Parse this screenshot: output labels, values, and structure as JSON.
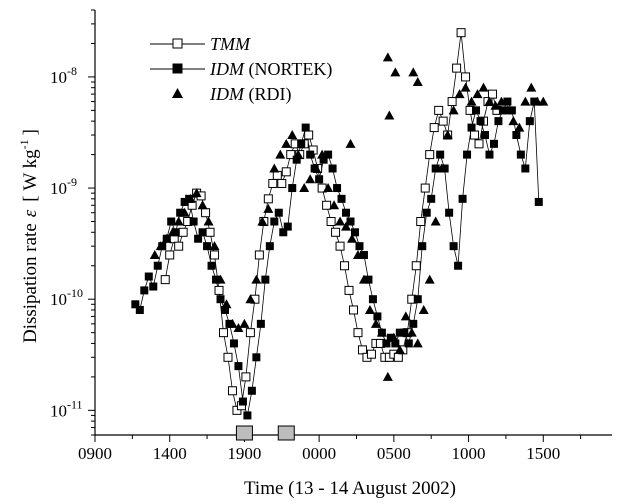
{
  "chart_data": {
    "type": "scatter",
    "title": "",
    "xlabel": "Time (13 - 14 August 2002)",
    "ylabel": "Dissipation rate",
    "ylabel_symbol": "ε",
    "ylabel_units_left": "[ W kg",
    "ylabel_units_exp": "-1",
    "ylabel_units_right": "]",
    "x_axis": {
      "unit": "hours since 0900 on 13 August 2002",
      "range": [
        0,
        34.6
      ],
      "tick_labels": [
        "0900",
        "1400",
        "1900",
        "0000",
        "0500",
        "1000",
        "1500"
      ],
      "tick_values": [
        0,
        5,
        10,
        15,
        20,
        25,
        30
      ]
    },
    "y_axis": {
      "scale": "log",
      "range": [
        6e-12,
        4e-08
      ],
      "ticks": [
        {
          "value": 1e-11,
          "base": "10",
          "exp": "-11"
        },
        {
          "value": 1e-10,
          "base": "10",
          "exp": "-10"
        },
        {
          "value": 1e-09,
          "base": "10",
          "exp": "-9"
        },
        {
          "value": 1e-08,
          "base": "10",
          "exp": "-8"
        }
      ]
    },
    "legend": {
      "position": "top-left",
      "entries": [
        {
          "base": "TMM",
          "paren": ""
        },
        {
          "base": "IDM ",
          "paren": "(NORTEK)"
        },
        {
          "base": "IDM ",
          "paren": "(RDI)"
        }
      ]
    },
    "markers_on_axis": [
      10.0,
      12.8
    ],
    "series": [
      {
        "name": "TMM",
        "marker": "open-square",
        "x": [
          4.7,
          5.0,
          5.3,
          5.6,
          5.9,
          6.2,
          6.5,
          6.8,
          7.1,
          7.4,
          7.7,
          8.0,
          8.3,
          8.6,
          8.9,
          9.2,
          9.5,
          9.8,
          10.1,
          10.4,
          10.7,
          11.0,
          11.3,
          11.6,
          11.9,
          12.2,
          12.5,
          12.8,
          13.1,
          13.4,
          13.7,
          14.0,
          14.3,
          14.6,
          14.9,
          15.2,
          15.5,
          15.8,
          16.1,
          16.4,
          16.7,
          17.0,
          17.3,
          17.6,
          17.9,
          18.2,
          18.5,
          18.8,
          19.1,
          19.4,
          19.7,
          20.0,
          20.3,
          20.6,
          20.9,
          21.2,
          21.5,
          21.8,
          22.1,
          22.4,
          22.7,
          23.0,
          23.3,
          23.6,
          23.9,
          24.2,
          24.5,
          24.8,
          25.1,
          25.4,
          25.7,
          26.0,
          26.3,
          26.6,
          26.9
        ],
        "y": [
          1.5e-10,
          2.5e-10,
          3.5e-10,
          3e-10,
          4e-10,
          5e-10,
          7e-10,
          9e-10,
          8.5e-10,
          6e-10,
          4e-10,
          2.5e-10,
          1.2e-10,
          5e-11,
          3e-11,
          1.5e-11,
          1e-11,
          1.1e-11,
          2e-11,
          5e-11,
          1e-10,
          2.5e-10,
          5e-10,
          8e-10,
          1.1e-09,
          1.3e-09,
          1.1e-09,
          1.4e-09,
          2e-09,
          2.5e-09,
          2e-09,
          2.5e-09,
          3e-09,
          2.2e-09,
          1.5e-09,
          1e-09,
          7e-10,
          5e-10,
          4e-10,
          3e-10,
          2e-10,
          1.2e-10,
          8e-11,
          5e-11,
          3.5e-11,
          3e-11,
          3.2e-11,
          4e-11,
          4e-11,
          3e-11,
          3e-11,
          3.2e-11,
          3e-11,
          3.5e-11,
          5e-11,
          1e-10,
          2e-10,
          5e-10,
          1e-09,
          2e-09,
          3.5e-09,
          5e-09,
          4e-09,
          3e-09,
          6e-09,
          1.2e-08,
          2.5e-08,
          1e-08,
          5e-09,
          3e-09,
          2.5e-09,
          4e-09,
          6e-09,
          7e-09,
          5e-09
        ]
      },
      {
        "name": "IDM (NORTEK)",
        "marker": "filled-square",
        "x": [
          2.7,
          3.0,
          3.3,
          3.6,
          3.9,
          4.2,
          4.5,
          4.8,
          5.1,
          5.4,
          5.7,
          6.0,
          6.3,
          6.6,
          6.9,
          7.2,
          7.5,
          7.8,
          8.1,
          8.4,
          8.7,
          9.0,
          9.3,
          9.6,
          9.9,
          10.2,
          10.5,
          10.8,
          11.1,
          11.4,
          11.7,
          12.0,
          12.3,
          12.6,
          12.9,
          13.2,
          13.5,
          13.8,
          14.1,
          14.4,
          14.7,
          15.0,
          15.3,
          15.6,
          15.9,
          16.2,
          16.5,
          16.8,
          17.1,
          17.4,
          17.7,
          18.0,
          18.3,
          18.6,
          18.9,
          19.2,
          19.5,
          19.8,
          20.1,
          20.4,
          20.7,
          21.0,
          21.3,
          21.6,
          21.9,
          22.2,
          22.5,
          22.8,
          23.1,
          23.4,
          23.7,
          24.0,
          24.3,
          24.6,
          24.9,
          25.2,
          25.5,
          25.8,
          26.1,
          26.4,
          26.7,
          27.0,
          27.3,
          27.6,
          27.9,
          28.2,
          28.5,
          28.8,
          29.1,
          29.4,
          29.7
        ],
        "y": [
          9e-11,
          8e-11,
          1.2e-10,
          1.6e-10,
          1.3e-10,
          2e-10,
          3e-10,
          3.5e-10,
          5e-10,
          4e-10,
          6e-10,
          7.5e-10,
          8e-10,
          5e-10,
          3.5e-10,
          4e-10,
          3e-10,
          2e-10,
          1.5e-10,
          1e-10,
          8e-11,
          6e-11,
          4e-11,
          2.5e-11,
          1.2e-11,
          9e-12,
          1.5e-11,
          3e-11,
          6e-11,
          1.5e-10,
          3e-10,
          5e-10,
          6e-10,
          4e-10,
          4.5e-10,
          1e-09,
          1.8e-09,
          2.5e-09,
          3.5e-09,
          2e-09,
          1.5e-09,
          1.2e-09,
          1.8e-09,
          2e-09,
          1.5e-09,
          1e-09,
          8e-10,
          6e-10,
          5e-10,
          4e-10,
          3e-10,
          2.5e-10,
          1.5e-10,
          1e-10,
          7e-11,
          5e-11,
          4e-11,
          4.5e-11,
          4e-11,
          5e-11,
          5e-11,
          4e-11,
          6e-11,
          1e-10,
          3e-10,
          6e-10,
          8e-10,
          1.5e-09,
          2e-09,
          1.5e-09,
          6e-10,
          3e-10,
          2e-10,
          8e-10,
          2e-09,
          3.5e-09,
          5e-09,
          4e-09,
          3e-09,
          2e-09,
          2.5e-09,
          4e-09,
          5e-09,
          6e-09,
          5e-09,
          3e-09,
          2e-09,
          1.5e-09,
          4e-09,
          6e-09,
          7.5e-10
        ]
      },
      {
        "name": "IDM (RDI)",
        "marker": "filled-triangle",
        "x": [
          4.0,
          4.4,
          4.8,
          5.2,
          5.6,
          6.0,
          6.4,
          6.8,
          7.2,
          7.6,
          8.0,
          8.4,
          8.8,
          9.2,
          9.6,
          10.0,
          10.4,
          10.8,
          11.2,
          11.6,
          12.0,
          12.4,
          12.8,
          13.2,
          13.6,
          14.0,
          14.4,
          14.8,
          15.2,
          15.6,
          16.0,
          16.4,
          16.8,
          17.2,
          17.6,
          18.0,
          18.4,
          18.8,
          19.2,
          19.6,
          20.0,
          20.4,
          20.8,
          21.2,
          21.6,
          22.0,
          22.4,
          22.8,
          23.2,
          23.6,
          24.0,
          24.4,
          24.8,
          25.2,
          25.6,
          26.0,
          26.4,
          26.8,
          27.2,
          27.6,
          28.0,
          28.4,
          28.8,
          29.2,
          29.6,
          30.0,
          17.1,
          19.6,
          19.7,
          20.1,
          21.3,
          21.6
        ],
        "y": [
          2.5e-10,
          3e-10,
          3.5e-10,
          4e-10,
          5e-10,
          6e-10,
          8e-10,
          9e-10,
          7e-10,
          5e-10,
          3e-10,
          1.5e-10,
          9e-11,
          6e-11,
          5.5e-11,
          6e-11,
          1e-10,
          1.5e-10,
          5e-10,
          6.5e-10,
          1.5e-09,
          2e-09,
          2.5e-09,
          3e-09,
          2e-09,
          1e-09,
          1.2e-09,
          1.5e-09,
          2e-09,
          1e-09,
          7e-10,
          5e-10,
          4.5e-10,
          3.5e-10,
          2.5e-10,
          1.5e-10,
          8e-11,
          6e-11,
          5e-11,
          2e-11,
          4.5e-11,
          3.5e-11,
          7e-11,
          5e-11,
          4e-11,
          8e-11,
          1.5e-10,
          5e-10,
          1.5e-09,
          3e-09,
          5e-09,
          7e-09,
          8e-09,
          6e-09,
          7e-09,
          8e-09,
          6e-09,
          5.5e-09,
          6e-09,
          5e-09,
          4e-09,
          3.5e-09,
          6e-09,
          8e-09,
          6e-09,
          6e-09,
          2.5e-09,
          1.5e-08,
          4.5e-09,
          1.1e-08,
          1.1e-08,
          9e-09
        ]
      }
    ]
  }
}
